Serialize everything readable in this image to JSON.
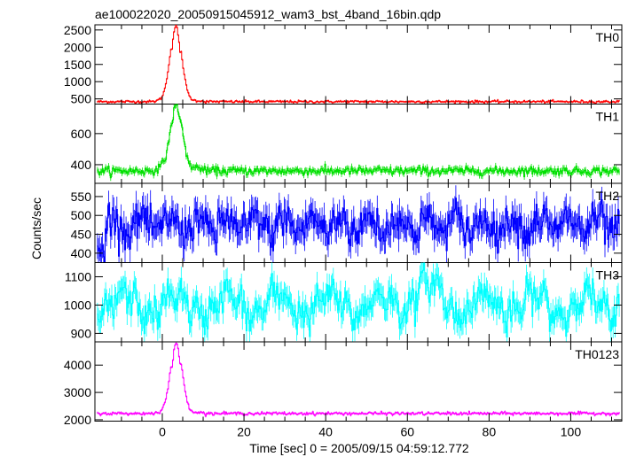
{
  "chart_data": {
    "type": "line",
    "title": "ae100022020_20050915045912_wam3_bst_4band_16bin.qdp",
    "xlabel": "Time [sec] 0 = 2005/09/15 04:59:12.772",
    "ylabel": "Counts/sec",
    "xlim": [
      -16.5,
      112.5
    ],
    "x_ticks": [
      0,
      20,
      40,
      60,
      80,
      100
    ],
    "grid": false,
    "series": [
      {
        "name": "TH0",
        "color": "#ff0000",
        "ylim": [
          350,
          2650
        ],
        "y_ticks": [
          500,
          1000,
          1500,
          2000,
          2500
        ],
        "baseline": 420,
        "noise": 30,
        "peak": {
          "t": 3.2,
          "height": 2180,
          "width": 1.1
        },
        "sample_points": [
          [
            -15,
            420
          ],
          [
            0,
            460
          ],
          [
            2,
            800
          ],
          [
            3,
            2600
          ],
          [
            4,
            2500
          ],
          [
            5,
            800
          ],
          [
            8,
            480
          ],
          [
            20,
            440
          ],
          [
            60,
            430
          ],
          [
            110,
            420
          ]
        ]
      },
      {
        "name": "TH1",
        "color": "#00e000",
        "ylim": [
          280,
          790
        ],
        "y_ticks": [
          400,
          600
        ],
        "baseline": 360,
        "noise": 22,
        "peak": {
          "t": 3.3,
          "height": 420,
          "width": 1.1
        },
        "sample_points": [
          [
            -15,
            360
          ],
          [
            0,
            380
          ],
          [
            3,
            780
          ],
          [
            5,
            460
          ],
          [
            10,
            370
          ],
          [
            60,
            360
          ],
          [
            110,
            355
          ]
        ]
      },
      {
        "name": "TH2",
        "color": "#0000ff",
        "ylim": [
          375,
          585
        ],
        "y_ticks": [
          400,
          450,
          500,
          550
        ],
        "baseline": 475,
        "noise": 38,
        "peak": {
          "t": 3.3,
          "height": 0,
          "width": 1.0
        },
        "sample_points": [
          [
            -15,
            410
          ],
          [
            0,
            480
          ],
          [
            20,
            490
          ],
          [
            60,
            470
          ],
          [
            110,
            475
          ]
        ]
      },
      {
        "name": "TH3",
        "color": "#00ffff",
        "ylim": [
          870,
          1150
        ],
        "y_ticks": [
          900,
          1000,
          1100
        ],
        "baseline": 1000,
        "noise": 45,
        "peak": {
          "t": 64,
          "height": 60,
          "width": 2.5
        },
        "sample_points": [
          [
            -15,
            1000
          ],
          [
            20,
            990
          ],
          [
            64,
            1120
          ],
          [
            100,
            1010
          ],
          [
            110,
            950
          ]
        ]
      },
      {
        "name": "TH0123",
        "color": "#ff00ff",
        "ylim": [
          1950,
          4850
        ],
        "y_ticks": [
          2000,
          3000,
          4000
        ],
        "baseline": 2230,
        "noise": 45,
        "peak": {
          "t": 3.3,
          "height": 2550,
          "width": 1.1
        },
        "sample_points": [
          [
            -15,
            2150
          ],
          [
            0,
            2300
          ],
          [
            3,
            4750
          ],
          [
            5,
            3200
          ],
          [
            10,
            2300
          ],
          [
            60,
            2250
          ],
          [
            110,
            2150
          ]
        ]
      }
    ]
  }
}
